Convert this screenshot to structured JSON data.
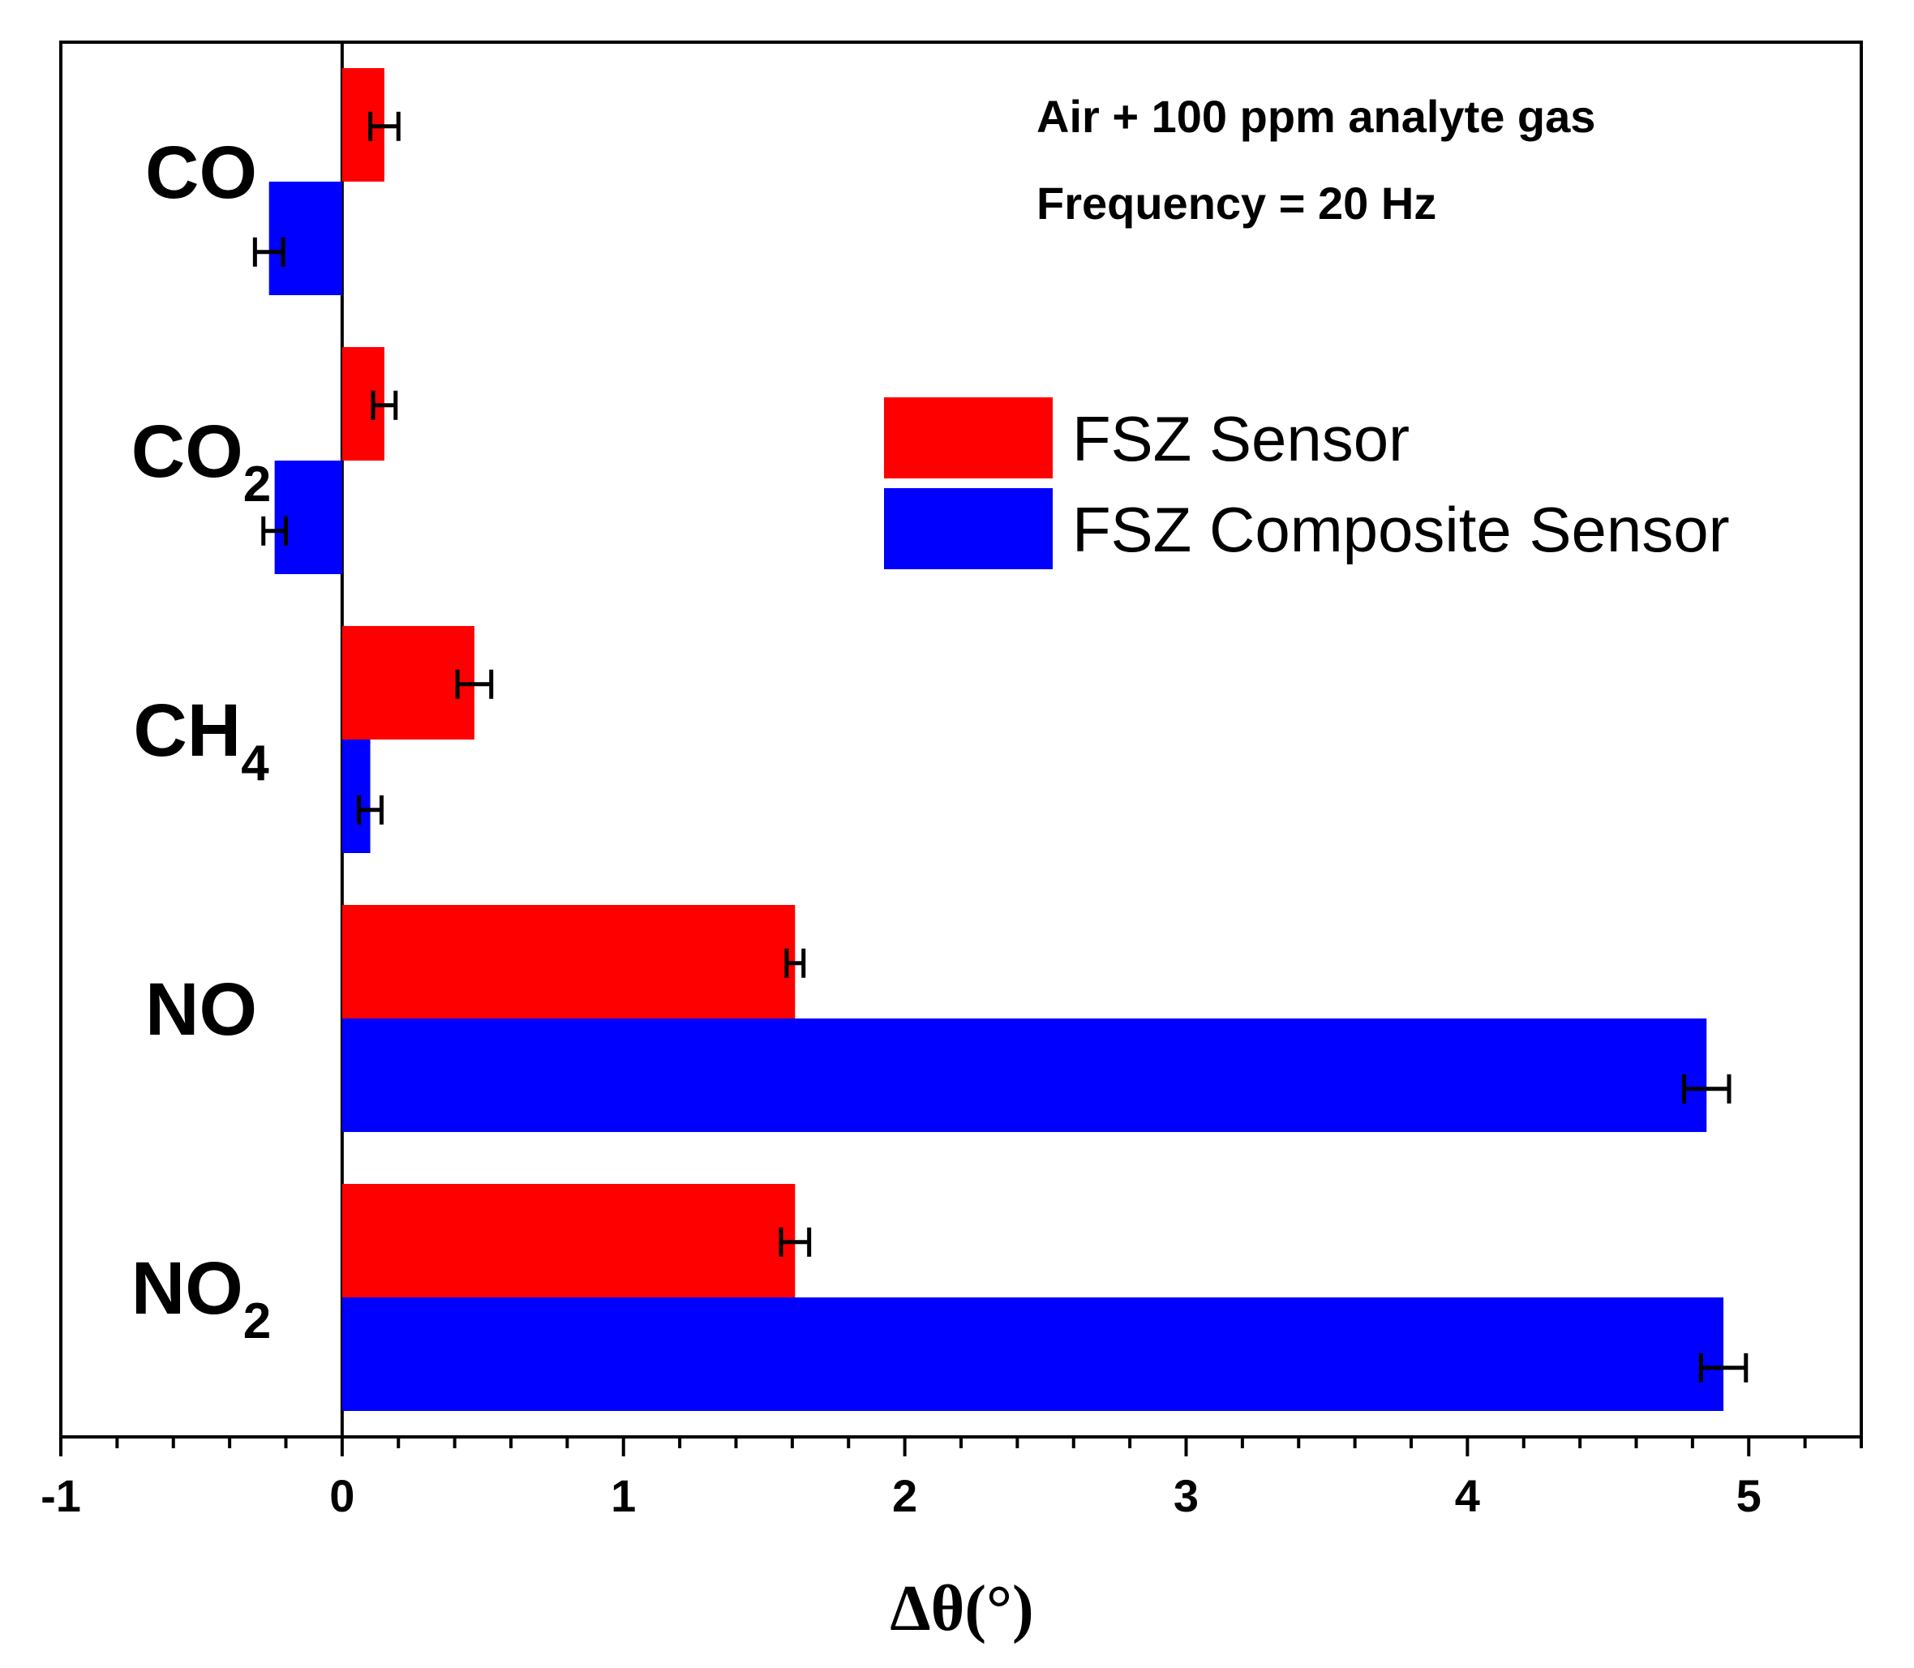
{
  "chart_data": {
    "type": "bar",
    "orientation": "horizontal",
    "categories": [
      {
        "base": "CO",
        "sub": ""
      },
      {
        "base": "CO",
        "sub": "2"
      },
      {
        "base": "CH",
        "sub": "4"
      },
      {
        "base": "NO",
        "sub": ""
      },
      {
        "base": "NO",
        "sub": "2"
      }
    ],
    "series": [
      {
        "name": "FSZ Sensor",
        "color": "#ff0000",
        "values": [
          0.15,
          0.15,
          0.47,
          1.61,
          1.61
        ],
        "errors": [
          0.05,
          0.04,
          0.06,
          0.03,
          0.05
        ]
      },
      {
        "name": "FSZ Composite Sensor",
        "color": "#0000ff",
        "values": [
          -0.26,
          -0.24,
          0.1,
          4.85,
          4.91
        ],
        "errors": [
          0.05,
          0.04,
          0.04,
          0.08,
          0.08
        ]
      }
    ],
    "xlim": [
      -1,
      5.4
    ],
    "xticks": [
      -1,
      0,
      1,
      2,
      3,
      4,
      5
    ],
    "xminor_step": 0.2,
    "xlabel": "Δθ(°)",
    "annotations": [
      "Air + 100 ppm analyte gas",
      "Frequency = 20 Hz"
    ],
    "legend_position": "upper-right"
  }
}
